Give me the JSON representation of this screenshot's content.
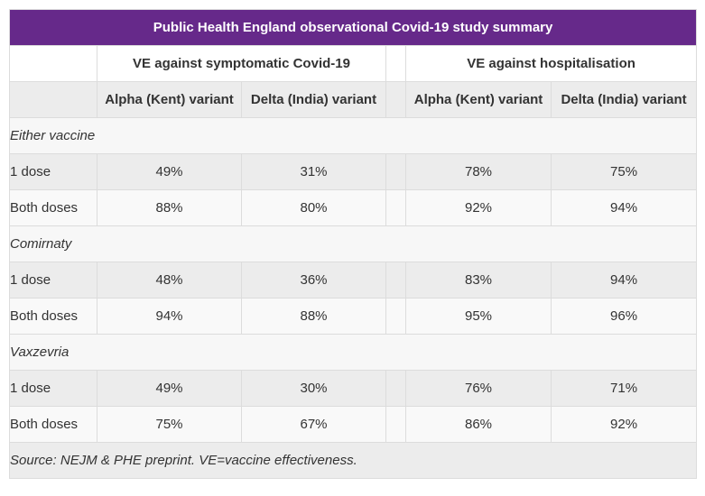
{
  "title": "Public Health England observational Covid-19 study summary",
  "groups": {
    "symptomatic": "VE against symptomatic Covid-19",
    "hospitalisation": "VE against hospitalisation"
  },
  "variants": {
    "alpha": "Alpha (Kent) variant",
    "delta": "Delta (India) variant"
  },
  "sections": [
    {
      "name": "Either vaccine",
      "rows": [
        {
          "label": "1 dose",
          "sym_alpha": "49%",
          "sym_delta": "31%",
          "hosp_alpha": "78%",
          "hosp_delta": "75%"
        },
        {
          "label": "Both doses",
          "sym_alpha": "88%",
          "sym_delta": "80%",
          "hosp_alpha": "92%",
          "hosp_delta": "94%"
        }
      ]
    },
    {
      "name": "Comirnaty",
      "rows": [
        {
          "label": "1 dose",
          "sym_alpha": "48%",
          "sym_delta": "36%",
          "hosp_alpha": "83%",
          "hosp_delta": "94%"
        },
        {
          "label": "Both doses",
          "sym_alpha": "94%",
          "sym_delta": "88%",
          "hosp_alpha": "95%",
          "hosp_delta": "96%"
        }
      ]
    },
    {
      "name": "Vaxzevria",
      "rows": [
        {
          "label": "1 dose",
          "sym_alpha": "49%",
          "sym_delta": "30%",
          "hosp_alpha": "76%",
          "hosp_delta": "71%"
        },
        {
          "label": "Both doses",
          "sym_alpha": "75%",
          "sym_delta": "67%",
          "hosp_alpha": "86%",
          "hosp_delta": "92%"
        }
      ]
    }
  ],
  "footer": "Source: NEJM & PHE preprint. VE=vaccine effectiveness.",
  "colors": {
    "header_bg": "#66298a",
    "row_alt": "#ececec"
  }
}
